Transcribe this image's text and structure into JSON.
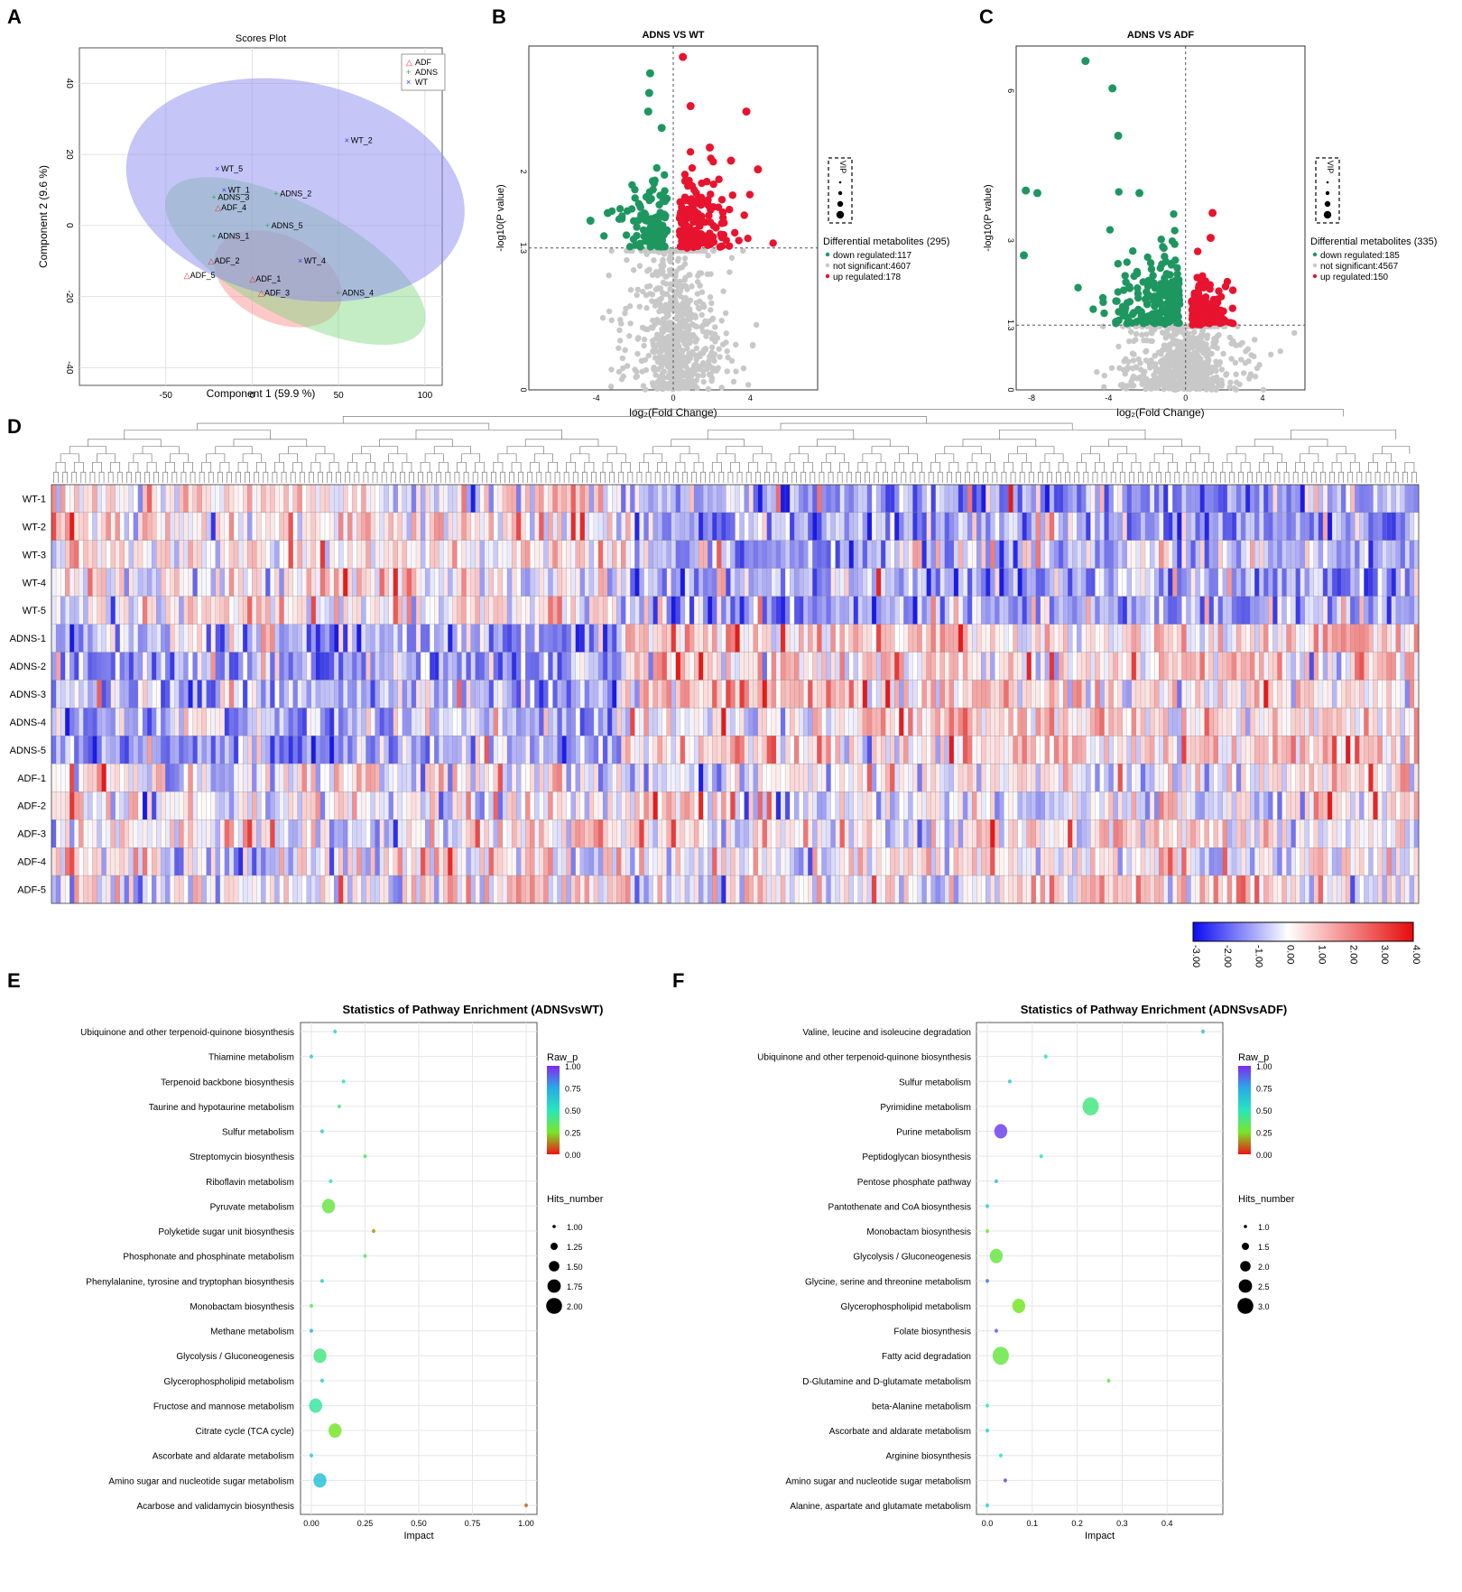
{
  "chart_data": [
    {
      "panel": "A",
      "type": "scatter",
      "title": "Scores Plot",
      "xlabel": "Component 1 (59.9 %)",
      "ylabel": "Component 2 (9.6 %)",
      "xlim": [
        -100,
        110
      ],
      "ylim": [
        -45,
        50
      ],
      "xticks": [
        "-50",
        "0",
        "50",
        "100"
      ],
      "yticks": [
        "-40",
        "-20",
        "0",
        "20",
        "40"
      ],
      "legend": [
        {
          "name": "ADF",
          "marker": "△",
          "color": "#e8323c"
        },
        {
          "name": "ADNS",
          "marker": "+",
          "color": "#2ea84a"
        },
        {
          "name": "WT",
          "marker": "×",
          "color": "#2a3ae0"
        }
      ],
      "points": [
        {
          "label": "WT_2",
          "group": "WT",
          "x": 55,
          "y": 24
        },
        {
          "label": "WT_5",
          "group": "WT",
          "x": -20,
          "y": 16
        },
        {
          "label": "WT_1",
          "group": "WT",
          "x": -16,
          "y": 10
        },
        {
          "label": "WT_4",
          "group": "WT",
          "x": 28,
          "y": -10
        },
        {
          "label": "ADNS_2",
          "group": "ADNS",
          "x": 14,
          "y": 9
        },
        {
          "label": "ADNS_3",
          "group": "ADNS",
          "x": -22,
          "y": 8
        },
        {
          "label": "ADNS_5",
          "group": "ADNS",
          "x": 9,
          "y": 0
        },
        {
          "label": "ADNS_1",
          "group": "ADNS",
          "x": -22,
          "y": -3
        },
        {
          "label": "ADNS_4",
          "group": "ADNS",
          "x": 50,
          "y": -19
        },
        {
          "label": "ADF_4",
          "group": "ADF",
          "x": -20,
          "y": 5
        },
        {
          "label": "ADF_2",
          "group": "ADF",
          "x": -24,
          "y": -10
        },
        {
          "label": "ADF_5",
          "group": "ADF",
          "x": -38,
          "y": -14
        },
        {
          "label": "ADF_1",
          "group": "ADF",
          "x": 0,
          "y": -15
        },
        {
          "label": "ADF_3",
          "group": "ADF",
          "x": 5,
          "y": -19
        }
      ]
    },
    {
      "panel": "B",
      "type": "scatter",
      "title": "ADNS VS WT",
      "xlabel": "log₂(Fold Change)",
      "ylabel": "-log10(P value)",
      "xticks": [
        "-4",
        "0",
        "4"
      ],
      "yticks": [
        "0",
        "1.3",
        "2"
      ],
      "legend_title": "Differential metabolites (295)",
      "legend": [
        "down regulated:117",
        "not significant:4607",
        "up regulated:178"
      ],
      "vip_label": "VIP",
      "counts": {
        "down": 117,
        "not_significant": 4607,
        "up": 178
      }
    },
    {
      "panel": "C",
      "type": "scatter",
      "title": "ADNS VS ADF",
      "xlabel": "log₂(Fold Change)",
      "ylabel": "-log10(P value)",
      "xticks": [
        "-8",
        "-4",
        "0",
        "4"
      ],
      "yticks": [
        "0",
        "1.3",
        "3",
        "6"
      ],
      "legend_title": "Differential metabolites (335)",
      "legend": [
        "down regulated:185",
        "not significant:4567",
        "up regulated:150"
      ],
      "vip_label": "VIP",
      "counts": {
        "down": 185,
        "not_significant": 4567,
        "up": 150
      }
    },
    {
      "panel": "D",
      "type": "heatmap",
      "rows": [
        "WT-1",
        "WT-2",
        "WT-3",
        "WT-4",
        "WT-5",
        "ADNS-1",
        "ADNS-2",
        "ADNS-3",
        "ADNS-4",
        "ADNS-5",
        "ADF-1",
        "ADF-2",
        "ADF-3",
        "ADF-4",
        "ADF-5"
      ],
      "colorbar_ticks": [
        "-3.00",
        "-2.00",
        "-1.00",
        "0.00",
        "1.00",
        "2.00",
        "3.00",
        "4.00"
      ],
      "colors": {
        "low": "#1a1ae6",
        "mid": "#ffffff",
        "high": "#e61a1a"
      }
    },
    {
      "panel": "E",
      "type": "scatter",
      "title": "Statistics of Pathway Enrichment (ADNSvsWT)",
      "xlabel": "Impact",
      "xlim": [
        0,
        1.0
      ],
      "xticks": [
        "0.00",
        "0.25",
        "0.50",
        "0.75",
        "1.00"
      ],
      "color_legend_title": "Raw_p",
      "color_ticks": [
        "1.00",
        "0.75",
        "0.50",
        "0.25",
        "0.00"
      ],
      "size_legend_title": "Hits_number",
      "size_ticks": [
        "1.00",
        "1.25",
        "1.50",
        "1.75",
        "2.00"
      ],
      "pathways": [
        {
          "name": "Ubiquinone and other terpenoid-quinone biosynthesis",
          "impact": 0.11,
          "p": 0.55,
          "hits": 1
        },
        {
          "name": "Thiamine metabolism",
          "impact": 0.0,
          "p": 0.6,
          "hits": 1
        },
        {
          "name": "Terpenoid backbone biosynthesis",
          "impact": 0.15,
          "p": 0.5,
          "hits": 1
        },
        {
          "name": "Taurine and hypotaurine metabolism",
          "impact": 0.13,
          "p": 0.4,
          "hits": 1
        },
        {
          "name": "Sulfur metabolism",
          "impact": 0.05,
          "p": 0.6,
          "hits": 1
        },
        {
          "name": "Streptomycin biosynthesis",
          "impact": 0.25,
          "p": 0.35,
          "hits": 1
        },
        {
          "name": "Riboflavin metabolism",
          "impact": 0.09,
          "p": 0.5,
          "hits": 1
        },
        {
          "name": "Pyruvate metabolism",
          "impact": 0.08,
          "p": 0.3,
          "hits": 2
        },
        {
          "name": "Polyketide sugar unit biosynthesis",
          "impact": 0.29,
          "p": 0.15,
          "hits": 1
        },
        {
          "name": "Phosphonate and phosphinate metabolism",
          "impact": 0.25,
          "p": 0.35,
          "hits": 1
        },
        {
          "name": "Phenylalanine, tyrosine and tryptophan biosynthesis",
          "impact": 0.05,
          "p": 0.6,
          "hits": 1
        },
        {
          "name": "Monobactam biosynthesis",
          "impact": 0.0,
          "p": 0.35,
          "hits": 1
        },
        {
          "name": "Methane metabolism",
          "impact": 0.0,
          "p": 0.7,
          "hits": 1
        },
        {
          "name": "Glycolysis / Gluconeogenesis",
          "impact": 0.04,
          "p": 0.4,
          "hits": 2
        },
        {
          "name": "Glycerophospholipid metabolism",
          "impact": 0.05,
          "p": 0.6,
          "hits": 1
        },
        {
          "name": "Fructose and mannose metabolism",
          "impact": 0.02,
          "p": 0.45,
          "hits": 2
        },
        {
          "name": "Citrate cycle (TCA cycle)",
          "impact": 0.11,
          "p": 0.25,
          "hits": 2
        },
        {
          "name": "Ascorbate and aldarate metabolism",
          "impact": 0.0,
          "p": 0.6,
          "hits": 1
        },
        {
          "name": "Amino sugar and nucleotide sugar metabolism",
          "impact": 0.04,
          "p": 0.65,
          "hits": 2
        },
        {
          "name": "Acarbose and validamycin biosynthesis",
          "impact": 1.0,
          "p": 0.1,
          "hits": 1
        }
      ]
    },
    {
      "panel": "F",
      "type": "scatter",
      "title": "Statistics of Pathway Enrichment (ADNSvsADF)",
      "xlabel": "Impact",
      "xlim": [
        0,
        0.5
      ],
      "xticks": [
        "0.0",
        "0.1",
        "0.2",
        "0.3",
        "0.4"
      ],
      "color_legend_title": "Raw_p",
      "color_ticks": [
        "1.00",
        "0.75",
        "0.50",
        "0.25",
        "0.00"
      ],
      "size_legend_title": "Hits_number",
      "size_ticks": [
        "1.0",
        "1.5",
        "2.0",
        "2.5",
        "3.0"
      ],
      "pathways": [
        {
          "name": "Valine, leucine and isoleucine degradation",
          "impact": 0.48,
          "p": 0.65,
          "hits": 1
        },
        {
          "name": "Ubiquinone and other terpenoid-quinone biosynthesis",
          "impact": 0.13,
          "p": 0.55,
          "hits": 1
        },
        {
          "name": "Sulfur metabolism",
          "impact": 0.05,
          "p": 0.6,
          "hits": 1
        },
        {
          "name": "Pyrimidine metabolism",
          "impact": 0.23,
          "p": 0.4,
          "hits": 3
        },
        {
          "name": "Purine metabolism",
          "impact": 0.03,
          "p": 0.95,
          "hits": 2
        },
        {
          "name": "Peptidoglycan biosynthesis",
          "impact": 0.12,
          "p": 0.5,
          "hits": 1
        },
        {
          "name": "Pentose phosphate pathway",
          "impact": 0.02,
          "p": 0.65,
          "hits": 1
        },
        {
          "name": "Pantothenate and CoA biosynthesis",
          "impact": 0.0,
          "p": 0.6,
          "hits": 1
        },
        {
          "name": "Monobactam biosynthesis",
          "impact": 0.0,
          "p": 0.3,
          "hits": 1
        },
        {
          "name": "Glycolysis / Gluconeogenesis",
          "impact": 0.02,
          "p": 0.3,
          "hits": 2
        },
        {
          "name": "Glycine, serine and threonine metabolism",
          "impact": 0.0,
          "p": 0.85,
          "hits": 1
        },
        {
          "name": "Glycerophospholipid metabolism",
          "impact": 0.07,
          "p": 0.25,
          "hits": 2
        },
        {
          "name": "Folate biosynthesis",
          "impact": 0.02,
          "p": 0.9,
          "hits": 1
        },
        {
          "name": "Fatty acid degradation",
          "impact": 0.03,
          "p": 0.3,
          "hits": 3
        },
        {
          "name": "D-Glutamine and D-glutamate metabolism",
          "impact": 0.27,
          "p": 0.3,
          "hits": 1
        },
        {
          "name": "beta-Alanine metabolism",
          "impact": 0.0,
          "p": 0.45,
          "hits": 1
        },
        {
          "name": "Ascorbate and aldarate metabolism",
          "impact": 0.0,
          "p": 0.6,
          "hits": 1
        },
        {
          "name": "Arginine biosynthesis",
          "impact": 0.03,
          "p": 0.5,
          "hits": 1
        },
        {
          "name": "Amino sugar and nucleotide sugar metabolism",
          "impact": 0.04,
          "p": 0.95,
          "hits": 1
        },
        {
          "name": "Alanine, aspartate and glutamate metabolism",
          "impact": 0.0,
          "p": 0.6,
          "hits": 1
        }
      ]
    }
  ]
}
